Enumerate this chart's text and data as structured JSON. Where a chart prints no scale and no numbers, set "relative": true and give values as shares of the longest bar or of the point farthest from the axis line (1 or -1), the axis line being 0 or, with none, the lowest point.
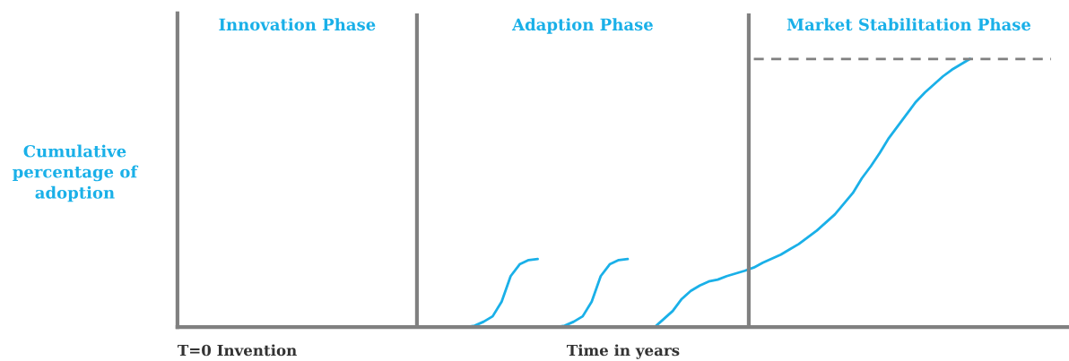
{
  "chart_data": {
    "type": "line",
    "relative": true,
    "xlabel": "Time in years",
    "ylabel": "Cumulative\npercentage of\nadoption",
    "annotations": [
      "Innovation Phase",
      "Adaption Phase",
      "Market Stabilitation Phase",
      "T=0 Invention"
    ],
    "marker": "none",
    "categories": [
      null,
      null,
      null,
      null,
      null,
      null,
      null,
      null,
      null,
      null,
      null,
      null,
      null,
      null,
      null,
      null,
      null,
      null,
      null,
      null,
      null,
      null,
      null,
      null,
      null,
      null,
      null,
      null,
      null,
      null,
      null,
      null,
      null,
      null,
      null,
      null,
      null,
      null,
      null,
      null,
      null,
      null,
      null,
      null,
      null,
      null,
      null,
      null,
      null,
      null,
      null,
      null,
      null,
      null,
      null,
      null,
      null,
      null,
      null,
      null,
      null,
      null,
      null,
      null,
      null,
      null,
      null,
      null,
      null,
      null,
      null,
      null,
      null,
      null,
      null,
      null,
      null,
      null,
      null,
      null,
      null,
      null,
      null,
      null,
      null,
      null,
      null,
      null,
      null,
      null,
      null,
      null,
      null,
      null,
      null,
      null,
      null,
      null,
      null,
      null
    ],
    "series": [
      {
        "color": "#1ab0e8",
        "line_style": "solid",
        "values": [
          null,
          null,
          null,
          null,
          null,
          null,
          null,
          null,
          null,
          null,
          null,
          null,
          null,
          null,
          null,
          null,
          null,
          null,
          null,
          null,
          null,
          null,
          null,
          null,
          null,
          null,
          null,
          null,
          null,
          null,
          null,
          null,
          0,
          0.005,
          0.02,
          0.04,
          0.095,
          0.19,
          0.234,
          0.25,
          0.254,
          null,
          null,
          null,
          null,
          null,
          null,
          null,
          null,
          null,
          null,
          null,
          null,
          null,
          null,
          null,
          null,
          null,
          null,
          null,
          null,
          null,
          null,
          null,
          null,
          null,
          null,
          null,
          null,
          null,
          null,
          null,
          null,
          null,
          null,
          null,
          null,
          null,
          null,
          null,
          null,
          null,
          null,
          null,
          null,
          null,
          null,
          null,
          null,
          null,
          null,
          null,
          null,
          null,
          null,
          null,
          null,
          null,
          null,
          null
        ]
      },
      {
        "color": "#1ab0e8",
        "line_style": "solid",
        "values": [
          null,
          null,
          null,
          null,
          null,
          null,
          null,
          null,
          null,
          null,
          null,
          null,
          null,
          null,
          null,
          null,
          null,
          null,
          null,
          null,
          null,
          null,
          null,
          null,
          null,
          null,
          null,
          null,
          null,
          null,
          null,
          null,
          null,
          null,
          null,
          null,
          null,
          null,
          null,
          null,
          null,
          null,
          0,
          0.005,
          0.02,
          0.04,
          0.095,
          0.19,
          0.234,
          0.25,
          0.254,
          null,
          null,
          null,
          null,
          null,
          null,
          null,
          null,
          null,
          null,
          null,
          null,
          null,
          null,
          null,
          null,
          null,
          null,
          null,
          null,
          null,
          null,
          null,
          null,
          null,
          null,
          null,
          null,
          null,
          null,
          null,
          null,
          null,
          null,
          null,
          null,
          null,
          null,
          null,
          null,
          null,
          null,
          null,
          null,
          null,
          null,
          null,
          null,
          null
        ]
      },
      {
        "color": "#1ab0e8",
        "line_style": "solid",
        "values": [
          null,
          null,
          null,
          null,
          null,
          null,
          null,
          null,
          null,
          null,
          null,
          null,
          null,
          null,
          null,
          null,
          null,
          null,
          null,
          null,
          null,
          null,
          null,
          null,
          null,
          null,
          null,
          null,
          null,
          null,
          null,
          null,
          null,
          null,
          null,
          null,
          null,
          null,
          null,
          null,
          null,
          null,
          null,
          null,
          null,
          null,
          null,
          null,
          null,
          null,
          null,
          null,
          null,
          0,
          0.03,
          0.06,
          0.105,
          0.135,
          0.155,
          0.17,
          0.177,
          0.19,
          0.2,
          0.21,
          0.222,
          0.24,
          0.255,
          0.27,
          0.29,
          0.31,
          0.335,
          0.36,
          0.39,
          0.42,
          0.46,
          0.5,
          0.555,
          0.6,
          0.65,
          0.705,
          0.75,
          0.795,
          0.84,
          0.875,
          0.905,
          0.935,
          0.96,
          0.98,
          1,
          null,
          null,
          null,
          null,
          null,
          null,
          null,
          null,
          null,
          null,
          null
        ]
      },
      {
        "color": "#808080",
        "line_style": "dashed",
        "values": [
          null,
          null,
          null,
          null,
          null,
          null,
          null,
          null,
          null,
          null,
          null,
          null,
          null,
          null,
          null,
          null,
          null,
          null,
          null,
          null,
          null,
          null,
          null,
          null,
          null,
          null,
          null,
          null,
          null,
          null,
          null,
          null,
          null,
          null,
          null,
          null,
          null,
          null,
          null,
          null,
          null,
          null,
          null,
          null,
          null,
          null,
          null,
          null,
          null,
          null,
          null,
          null,
          null,
          null,
          null,
          null,
          null,
          null,
          null,
          null,
          null,
          null,
          null,
          null,
          1,
          1,
          1,
          1,
          1,
          1,
          1,
          1,
          1,
          1,
          1,
          1,
          1,
          1,
          1,
          1,
          1,
          1,
          1,
          1,
          1,
          1,
          1,
          1,
          1,
          1,
          1,
          1,
          1,
          1,
          1,
          1,
          1,
          1,
          null,
          null
        ]
      }
    ]
  }
}
